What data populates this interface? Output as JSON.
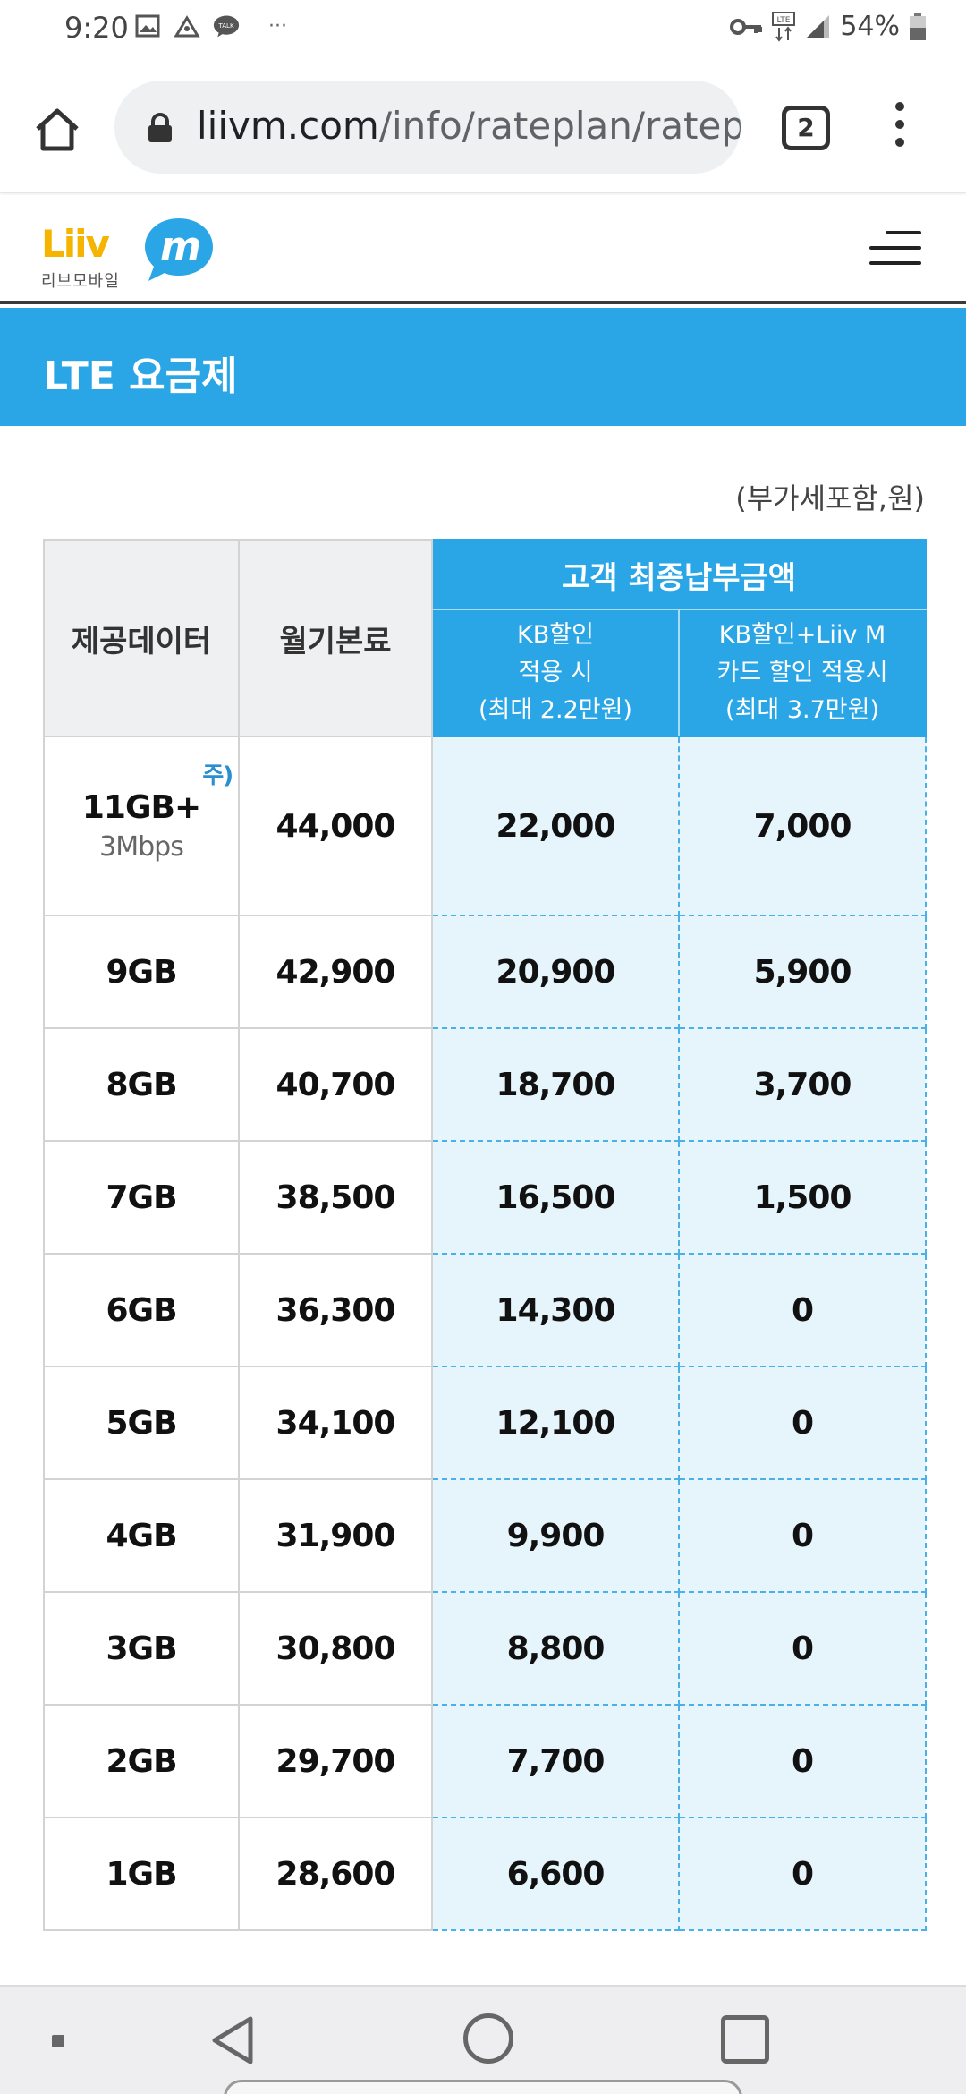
{
  "status_bar": {
    "time": "9:20",
    "left_icons": [
      "gallery-icon",
      "kakao-icon",
      "talk-icon"
    ],
    "talk_label": "TALK",
    "overflow": "···",
    "right_icons": [
      "key-icon",
      "lte-icon",
      "signal-icon",
      "battery-icon"
    ],
    "lte_label": "LTE",
    "battery": "54%"
  },
  "browser": {
    "url_host": "liivm.com",
    "url_path": "/info/rateplan/ratep",
    "tab_count": "2"
  },
  "site": {
    "logo_text": "Liiv",
    "logo_m": "m",
    "logo_sub": "리브모바일"
  },
  "page": {
    "title": "LTE 요금제",
    "vat_note": "(부가세포함,원)"
  },
  "table": {
    "headers": {
      "data": "제공데이터",
      "monthly_fee": "월기본료",
      "final_payment": "고객 최종납부금액",
      "kb_discount": [
        "KB할인",
        "적용 시",
        "(최대 2.2만원)"
      ],
      "kb_card_discount": [
        "KB할인+Liiv M",
        "카드 할인 적용시",
        "(최대 3.7만원)"
      ]
    },
    "note_mark": "주)",
    "rows": [
      {
        "data": "11GB+",
        "sub": "3Mbps",
        "fee": "44,000",
        "kb": "22,000",
        "kb_card": "7,000"
      },
      {
        "data": "9GB",
        "fee": "42,900",
        "kb": "20,900",
        "kb_card": "5,900"
      },
      {
        "data": "8GB",
        "fee": "40,700",
        "kb": "18,700",
        "kb_card": "3,700"
      },
      {
        "data": "7GB",
        "fee": "38,500",
        "kb": "16,500",
        "kb_card": "1,500"
      },
      {
        "data": "6GB",
        "fee": "36,300",
        "kb": "14,300",
        "kb_card": "0"
      },
      {
        "data": "5GB",
        "fee": "34,100",
        "kb": "12,100",
        "kb_card": "0"
      },
      {
        "data": "4GB",
        "fee": "31,900",
        "kb": "9,900",
        "kb_card": "0"
      },
      {
        "data": "3GB",
        "fee": "30,800",
        "kb": "8,800",
        "kb_card": "0"
      },
      {
        "data": "2GB",
        "fee": "29,700",
        "kb": "7,700",
        "kb_card": "0"
      },
      {
        "data": "1GB",
        "fee": "28,600",
        "kb": "6,600",
        "kb_card": "0"
      }
    ]
  },
  "colors": {
    "accent": "#2aa6e6",
    "highlight_cell": "#e6f4fb",
    "header_gray": "#eef0f2",
    "logo_yellow": "#f4b400"
  }
}
